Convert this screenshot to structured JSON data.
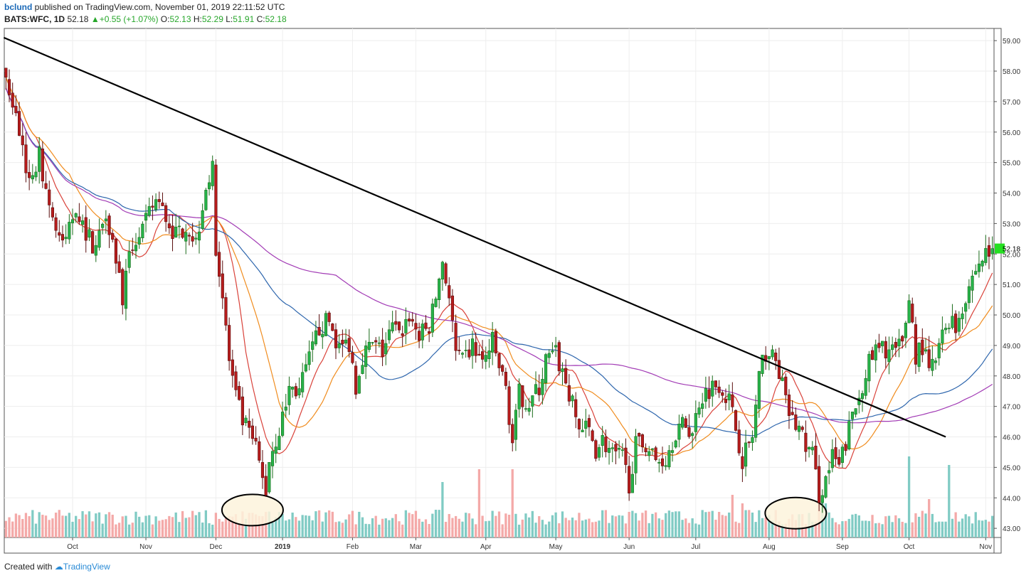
{
  "header": {
    "author": "bclund",
    "published_text": "published on TradingView.com, November 01, 2019 22:11:52 UTC",
    "symbol": "BATS:WFC, 1D",
    "last": "52.18",
    "change": "+0.55 (+1.07%)",
    "ohlc": [
      {
        "label": "O:",
        "value": "52.13"
      },
      {
        "label": "H:",
        "value": "52.29"
      },
      {
        "label": "L:",
        "value": "51.91"
      },
      {
        "label": "C:",
        "value": "52.18"
      }
    ]
  },
  "footer": {
    "created_with": "Created with",
    "brand": "TradingView"
  },
  "colors": {
    "up": "#26a69a",
    "down": "#b71c1c",
    "up_fill": "#26b34a",
    "vol_up": "#80cbc4",
    "vol_down": "#f4a9a8",
    "ma_red": "#d9423a",
    "ma_orange": "#f08c1e",
    "ma_blue": "#2e66ad",
    "ma_purple": "#a23bb5",
    "trendline": "#000000",
    "last_price_bg": "#25e021",
    "grid": "#eeeeee"
  },
  "chart_data": {
    "type": "candlestick",
    "symbol": "BATS:WFC",
    "interval": "1D",
    "ylim": [
      42.7,
      59.4
    ],
    "y_ticks": [
      "59.00",
      "58.00",
      "57.00",
      "56.00",
      "55.00",
      "54.00",
      "53.00",
      "52.00",
      "51.00",
      "50.00",
      "49.00",
      "48.00",
      "47.00",
      "46.00",
      "45.00",
      "44.00",
      "43.00"
    ],
    "x_ticks": [
      {
        "label": "Oct",
        "day": 20
      },
      {
        "label": "Nov",
        "day": 42
      },
      {
        "label": "Dec",
        "day": 63
      },
      {
        "label": "2019",
        "day": 83
      },
      {
        "label": "Feb",
        "day": 104
      },
      {
        "label": "Mar",
        "day": 123
      },
      {
        "label": "Apr",
        "day": 144
      },
      {
        "label": "May",
        "day": 165
      },
      {
        "label": "Jun",
        "day": 187
      },
      {
        "label": "Jul",
        "day": 207
      },
      {
        "label": "Aug",
        "day": 229
      },
      {
        "label": "Sep",
        "day": 251
      },
      {
        "label": "Oct",
        "day": 271
      },
      {
        "label": "Nov",
        "day": 294
      }
    ],
    "last_price_label": "52.18",
    "last_price": 52.18,
    "anchors": [
      [
        0,
        57.8
      ],
      [
        3,
        56.5
      ],
      [
        7,
        54.4
      ],
      [
        10,
        55.2
      ],
      [
        14,
        53.2
      ],
      [
        17,
        52.2
      ],
      [
        21,
        53.6
      ],
      [
        24,
        52.7
      ],
      [
        27,
        52.2
      ],
      [
        30,
        53.5
      ],
      [
        33,
        51.9
      ],
      [
        35,
        50.6
      ],
      [
        38,
        52.3
      ],
      [
        42,
        53.0
      ],
      [
        45,
        53.8
      ],
      [
        48,
        53.2
      ],
      [
        51,
        52.6
      ],
      [
        54,
        53.0
      ],
      [
        57,
        52.4
      ],
      [
        60,
        54.3
      ],
      [
        62,
        54.7
      ],
      [
        63,
        52.3
      ],
      [
        65,
        50.6
      ],
      [
        67,
        48.5
      ],
      [
        69,
        47.3
      ],
      [
        71,
        46.5
      ],
      [
        73,
        46.1
      ],
      [
        75,
        45.6
      ],
      [
        77,
        44.6
      ],
      [
        78,
        44.2
      ],
      [
        79,
        45.3
      ],
      [
        81,
        45.9
      ],
      [
        83,
        46.6
      ],
      [
        85,
        47.6
      ],
      [
        88,
        47.5
      ],
      [
        91,
        48.5
      ],
      [
        94,
        49.6
      ],
      [
        97,
        49.8
      ],
      [
        100,
        48.9
      ],
      [
        103,
        49.1
      ],
      [
        105,
        47.7
      ],
      [
        107,
        48.7
      ],
      [
        110,
        49.0
      ],
      [
        113,
        48.8
      ],
      [
        116,
        49.6
      ],
      [
        118,
        49.3
      ],
      [
        121,
        50.0
      ],
      [
        124,
        49.3
      ],
      [
        127,
        49.6
      ],
      [
        129,
        50.6
      ],
      [
        131,
        51.8
      ],
      [
        133,
        50.6
      ],
      [
        135,
        48.7
      ],
      [
        137,
        48.4
      ],
      [
        140,
        49.0
      ],
      [
        143,
        48.4
      ],
      [
        146,
        49.1
      ],
      [
        148,
        48.3
      ],
      [
        150,
        47.6
      ],
      [
        152,
        45.8
      ],
      [
        154,
        47.4
      ],
      [
        157,
        47.1
      ],
      [
        160,
        47.6
      ],
      [
        162,
        48.5
      ],
      [
        165,
        48.7
      ],
      [
        168,
        47.8
      ],
      [
        170,
        47.0
      ],
      [
        172,
        46.3
      ],
      [
        175,
        46.2
      ],
      [
        177,
        45.6
      ],
      [
        179,
        45.9
      ],
      [
        182,
        45.4
      ],
      [
        185,
        45.3
      ],
      [
        187,
        44.5
      ],
      [
        189,
        45.7
      ],
      [
        192,
        45.8
      ],
      [
        195,
        45.2
      ],
      [
        198,
        45.3
      ],
      [
        201,
        46.2
      ],
      [
        204,
        46.4
      ],
      [
        206,
        46.1
      ],
      [
        208,
        47.2
      ],
      [
        211,
        47.6
      ],
      [
        214,
        47.8
      ],
      [
        217,
        47.2
      ],
      [
        219,
        46.3
      ],
      [
        221,
        45.3
      ],
      [
        224,
        46.0
      ],
      [
        226,
        47.9
      ],
      [
        228,
        48.8
      ],
      [
        230,
        48.6
      ],
      [
        232,
        48.2
      ],
      [
        234,
        47.1
      ],
      [
        236,
        46.5
      ],
      [
        238,
        46.3
      ],
      [
        240,
        45.7
      ],
      [
        242,
        45.4
      ],
      [
        244,
        44.1
      ],
      [
        246,
        44.6
      ],
      [
        248,
        45.3
      ],
      [
        250,
        45.0
      ],
      [
        252,
        45.8
      ],
      [
        254,
        46.7
      ],
      [
        256,
        47.3
      ],
      [
        258,
        48.2
      ],
      [
        261,
        48.8
      ],
      [
        264,
        48.9
      ],
      [
        267,
        48.8
      ],
      [
        269,
        49.0
      ],
      [
        271,
        50.6
      ],
      [
        273,
        48.7
      ],
      [
        275,
        49.0
      ],
      [
        277,
        48.1
      ],
      [
        279,
        48.5
      ],
      [
        281,
        49.3
      ],
      [
        283,
        49.9
      ],
      [
        285,
        49.6
      ],
      [
        287,
        50.3
      ],
      [
        289,
        51.0
      ],
      [
        292,
        51.7
      ],
      [
        294,
        52.0
      ],
      [
        296,
        52.18
      ]
    ],
    "volume_spikes": [
      [
        62,
        0.3
      ],
      [
        66,
        0.45
      ],
      [
        77,
        0.5
      ],
      [
        78,
        0.6
      ],
      [
        131,
        1.3
      ],
      [
        133,
        0.55
      ],
      [
        142,
        1.6
      ],
      [
        152,
        1.6
      ],
      [
        160,
        0.5
      ],
      [
        187,
        0.6
      ],
      [
        214,
        0.6
      ],
      [
        218,
        1.0
      ],
      [
        221,
        0.8
      ],
      [
        244,
        1.2
      ],
      [
        245,
        0.9
      ],
      [
        246,
        0.8
      ],
      [
        271,
        1.9
      ],
      [
        277,
        0.9
      ],
      [
        283,
        1.7
      ]
    ],
    "moving_averages": [
      {
        "color": "red",
        "period": 10
      },
      {
        "color": "orange",
        "period": 20
      },
      {
        "color": "blue",
        "period": 50
      },
      {
        "color": "purple",
        "period": 100
      }
    ],
    "trendline": {
      "start": {
        "day": 0,
        "price": 59.1
      },
      "end": {
        "day": 282,
        "price": 46.0
      }
    },
    "highlight_ellipses": [
      {
        "center_day": 74,
        "center_price": 43.6
      },
      {
        "center_day": 237,
        "center_price": 43.5
      }
    ]
  }
}
